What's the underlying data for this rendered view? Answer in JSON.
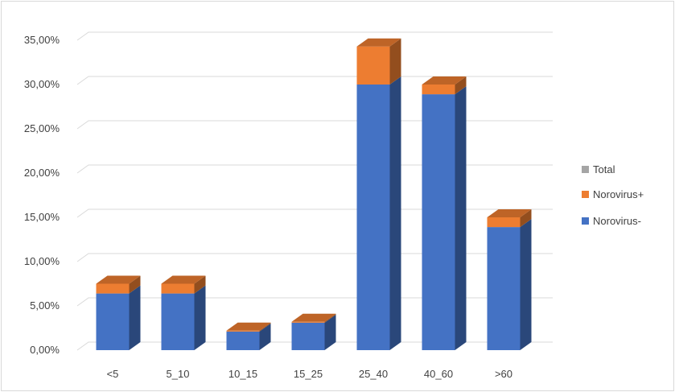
{
  "chart_data": {
    "type": "bar",
    "stacked": true,
    "three_d": true,
    "categories": [
      "<5",
      "5_10",
      "10_15",
      "15_25",
      "25_40",
      "40_60",
      ">60"
    ],
    "series": [
      {
        "name": "Norovirus-",
        "values": [
          6.4,
          6.4,
          2.1,
          3.1,
          30.0,
          28.9,
          13.9
        ],
        "color": "#4472c4"
      },
      {
        "name": "Norovirus+",
        "values": [
          1.1,
          1.1,
          0.1,
          0.1,
          4.3,
          1.1,
          1.1
        ],
        "color": "#ed7d31"
      },
      {
        "name": "Total",
        "values": [
          0,
          0,
          0,
          0,
          0,
          0,
          0
        ],
        "color": "#a5a5a5"
      }
    ],
    "yticks": [
      "0,00%",
      "5,00%",
      "10,00%",
      "15,00%",
      "20,00%",
      "25,00%",
      "30,00%",
      "35,00%"
    ],
    "ylim": [
      0,
      35
    ],
    "grid": true,
    "legend_position": "right",
    "legend_order": [
      "Total",
      "Norovirus+",
      "Norovirus-"
    ],
    "title": "",
    "xlabel": "",
    "ylabel": ""
  }
}
